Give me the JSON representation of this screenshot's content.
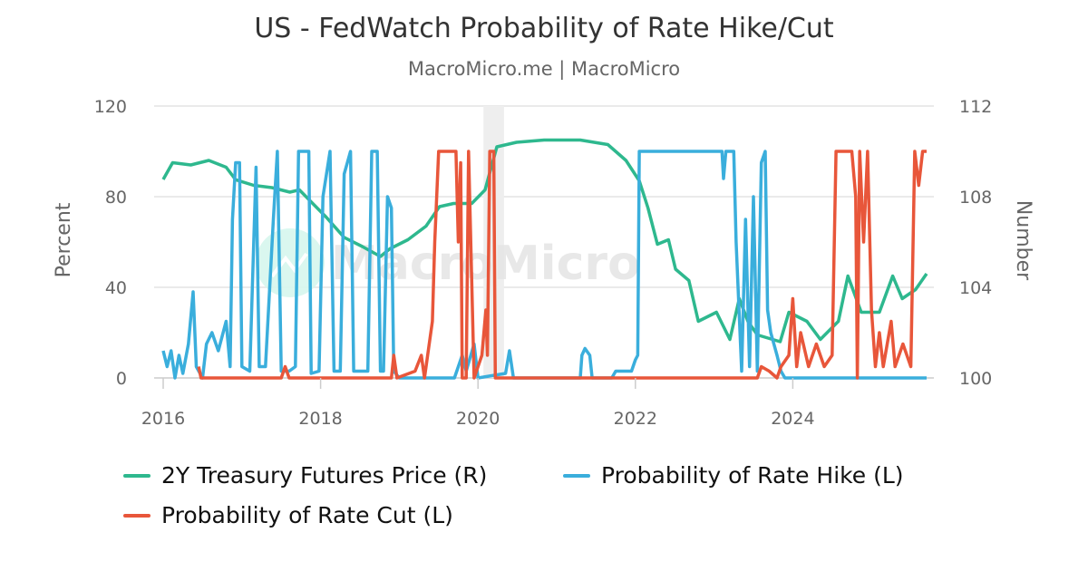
{
  "chart_data": {
    "type": "line",
    "title": "US - FedWatch Probability of Rate Hike/Cut",
    "subtitle": "MacroMicro.me | MacroMicro",
    "watermark": "MacroMicro",
    "ylabel_left": "Percent",
    "ylabel_right": "Number",
    "ylim_left": [
      0,
      120
    ],
    "ylim_right": [
      100,
      112
    ],
    "yticks_left": [
      "0",
      "40",
      "80",
      "120"
    ],
    "yticks_right": [
      "100",
      "104",
      "108",
      "112"
    ],
    "xticks": [
      "2016",
      "2018",
      "2020",
      "2022",
      "2024"
    ],
    "grid": true,
    "legend_position": "bottom",
    "shaded_range": [
      2020.07,
      2020.33
    ],
    "series": [
      {
        "name": "2Y Treasury Futures Price (R)",
        "axis": "right",
        "color": "#2eb88e",
        "x": [
          2016.0,
          2016.12,
          2016.35,
          2016.58,
          2016.8,
          2016.92,
          2017.15,
          2017.38,
          2017.61,
          2017.73,
          2017.9,
          2018.07,
          2018.3,
          2018.53,
          2018.76,
          2018.88,
          2019.11,
          2019.34,
          2019.51,
          2019.69,
          2019.92,
          2020.09,
          2020.24,
          2020.49,
          2020.84,
          2021.3,
          2021.65,
          2021.88,
          2022.05,
          2022.16,
          2022.28,
          2022.42,
          2022.51,
          2022.68,
          2022.8,
          2023.03,
          2023.2,
          2023.32,
          2023.43,
          2023.55,
          2023.84,
          2023.95,
          2024.18,
          2024.35,
          2024.58,
          2024.7,
          2024.87,
          2025.1,
          2025.27,
          2025.39,
          2025.56,
          2025.7
        ],
        "y": [
          108.76,
          109.5,
          109.4,
          109.6,
          109.3,
          108.75,
          108.5,
          108.4,
          108.2,
          108.3,
          107.7,
          107.1,
          106.2,
          105.8,
          105.36,
          105.7,
          106.1,
          106.7,
          107.56,
          107.7,
          107.7,
          108.3,
          110.2,
          110.4,
          110.5,
          110.5,
          110.3,
          109.6,
          108.7,
          107.5,
          105.9,
          106.1,
          104.8,
          104.3,
          102.5,
          102.9,
          101.7,
          103.5,
          102.5,
          101.9,
          101.6,
          102.9,
          102.5,
          101.7,
          102.5,
          104.5,
          102.9,
          102.9,
          104.5,
          103.5,
          103.9,
          104.6
        ]
      },
      {
        "name": "Probability of Rate Hike (L)",
        "axis": "left",
        "color": "#3aaedc",
        "x": [
          2016.0,
          2016.05,
          2016.1,
          2016.15,
          2016.2,
          2016.25,
          2016.32,
          2016.38,
          2016.42,
          2016.5,
          2016.55,
          2016.62,
          2016.7,
          2016.8,
          2016.85,
          2016.88,
          2016.92,
          2016.97,
          2017.0,
          2017.1,
          2017.18,
          2017.22,
          2017.3,
          2017.4,
          2017.45,
          2017.5,
          2017.6,
          2017.68,
          2017.72,
          2017.85,
          2017.88,
          2017.98,
          2018.03,
          2018.12,
          2018.17,
          2018.25,
          2018.3,
          2018.38,
          2018.42,
          2018.6,
          2018.65,
          2018.72,
          2018.76,
          2018.8,
          2018.85,
          2018.9,
          2018.93,
          2019.0,
          2019.7,
          2019.8,
          2019.85,
          2019.95,
          2020.0,
          2020.35,
          2020.4,
          2020.45,
          2021.3,
          2021.32,
          2021.36,
          2021.42,
          2021.45,
          2021.7,
          2021.75,
          2021.95,
          2022.0,
          2022.03,
          2022.05,
          2023.1,
          2023.12,
          2023.15,
          2023.25,
          2023.28,
          2023.35,
          2023.4,
          2023.45,
          2023.5,
          2023.55,
          2023.6,
          2023.65,
          2023.68,
          2023.72,
          2023.8,
          2023.85,
          2023.9,
          2025.7
        ],
        "y": [
          12,
          5,
          12,
          0,
          10,
          2,
          15,
          38,
          5,
          0,
          15,
          20,
          12,
          25,
          5,
          70,
          95,
          95,
          5,
          3,
          93,
          5,
          5,
          70,
          100,
          3,
          3,
          5,
          100,
          100,
          2,
          3,
          80,
          100,
          3,
          3,
          90,
          100,
          3,
          3,
          100,
          100,
          3,
          3,
          80,
          75,
          3,
          0,
          0,
          10,
          3,
          15,
          0,
          2,
          12,
          0,
          0,
          10,
          13,
          10,
          0,
          0,
          3,
          3,
          8,
          10,
          100,
          100,
          88,
          100,
          100,
          60,
          3,
          70,
          5,
          80,
          3,
          95,
          100,
          30,
          20,
          10,
          3,
          0,
          0
        ]
      },
      {
        "name": "Probability of Rate Cut (L)",
        "axis": "left",
        "color": "#e8563a",
        "x": [
          2016.45,
          2016.48,
          2017.5,
          2017.55,
          2017.6,
          2018.9,
          2018.93,
          2018.97,
          2019.2,
          2019.28,
          2019.32,
          2019.38,
          2019.42,
          2019.45,
          2019.5,
          2019.72,
          2019.75,
          2019.78,
          2019.8,
          2019.85,
          2019.88,
          2019.95,
          2020.05,
          2020.1,
          2020.12,
          2020.15,
          2020.2,
          2020.22,
          2023.55,
          2023.6,
          2023.7,
          2023.8,
          2023.85,
          2023.95,
          2024.0,
          2024.05,
          2024.1,
          2024.2,
          2024.3,
          2024.4,
          2024.5,
          2024.55,
          2024.75,
          2024.8,
          2024.82,
          2024.85,
          2024.9,
          2024.95,
          2025.0,
          2025.05,
          2025.1,
          2025.15,
          2025.25,
          2025.3,
          2025.4,
          2025.5,
          2025.55,
          2025.6,
          2025.65,
          2025.7
        ],
        "y": [
          5,
          0,
          0,
          5,
          0,
          0,
          10,
          0,
          3,
          10,
          0,
          15,
          25,
          60,
          100,
          100,
          60,
          95,
          0,
          0,
          100,
          0,
          10,
          30,
          10,
          100,
          100,
          0,
          0,
          5,
          3,
          0,
          5,
          10,
          35,
          5,
          20,
          5,
          15,
          5,
          10,
          100,
          100,
          80,
          0,
          100,
          60,
          100,
          30,
          5,
          20,
          5,
          25,
          5,
          15,
          5,
          100,
          85,
          100,
          100
        ]
      }
    ]
  }
}
